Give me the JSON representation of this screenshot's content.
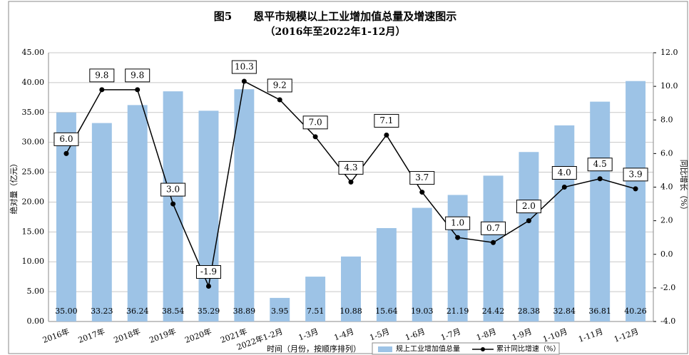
{
  "chart_data": {
    "type": "bar_line",
    "title": "图5　　恩平市规模以上工业增加值总量及增速图示",
    "subtitle": "（2016年至2022年1-12月）",
    "x_label": "时间（月份，按顺序排列）",
    "y_label": "绝对量（亿元）",
    "y2_label": "同比增长（%）",
    "categories": [
      "2016年",
      "2017年",
      "2018年",
      "2019年",
      "2020年",
      "2021年",
      "2022年1-2月",
      "1-3月",
      "1-4月",
      "1-5月",
      "1-6月",
      "1-7月",
      "1-8月",
      "1-9月",
      "1-10月",
      "1-11月",
      "1-12月"
    ],
    "series": [
      {
        "name": "规上工业增加值总量",
        "type": "bar",
        "color": "#9dc3e6",
        "values": [
          35.0,
          33.23,
          36.24,
          38.54,
          35.29,
          38.89,
          3.95,
          7.51,
          10.88,
          15.64,
          19.03,
          21.19,
          24.42,
          28.38,
          32.84,
          36.81,
          40.26
        ],
        "value_labels": [
          "35.00",
          "33.23",
          "36.24",
          "38.54",
          "35.29",
          "38.89",
          "3.95",
          "7.51",
          "10.88",
          "15.64",
          "19.03",
          "21.19",
          "24.42",
          "28.38",
          "32.84",
          "36.81",
          "40.26"
        ]
      },
      {
        "name": "累计同比增速（%）",
        "type": "line",
        "axis": "y2",
        "color": "#000000",
        "values": [
          6.0,
          9.8,
          9.8,
          3.0,
          -1.9,
          10.3,
          9.2,
          7.0,
          4.3,
          7.1,
          3.7,
          1.0,
          0.7,
          2.0,
          4.0,
          4.5,
          3.9
        ],
        "value_labels": [
          "6.0",
          "9.8",
          "9.8",
          "3.0",
          "-1.9",
          "10.3",
          "9.2",
          "7.0",
          "4.3",
          "7.1",
          "3.7",
          "1.0",
          "0.7",
          "2.0",
          "4.0",
          "4.5",
          "3.9"
        ]
      }
    ],
    "ylim": [
      0,
      45
    ],
    "yticks": [
      {
        "value": 0,
        "label": "0.00"
      },
      {
        "value": 5,
        "label": "5.00"
      },
      {
        "value": 10,
        "label": "10.00"
      },
      {
        "value": 15,
        "label": "15.00"
      },
      {
        "value": 20,
        "label": "20.00"
      },
      {
        "value": 25,
        "label": "25.00"
      },
      {
        "value": 30,
        "label": "30.00"
      },
      {
        "value": 35,
        "label": "35.00"
      },
      {
        "value": 40,
        "label": "40.00"
      },
      {
        "value": 45,
        "label": "45.00"
      }
    ],
    "y2lim": [
      -4,
      12
    ],
    "y2ticks": [
      {
        "value": -4,
        "label": "-4.0"
      },
      {
        "value": -2,
        "label": "-2.0"
      },
      {
        "value": 0,
        "label": "0.0"
      },
      {
        "value": 2,
        "label": "2.0"
      },
      {
        "value": 4,
        "label": "4.0"
      },
      {
        "value": 6,
        "label": "6.0"
      },
      {
        "value": 8,
        "label": "8.0"
      },
      {
        "value": 10,
        "label": "10.0"
      },
      {
        "value": 12,
        "label": "12.0"
      }
    ],
    "grid": true
  }
}
